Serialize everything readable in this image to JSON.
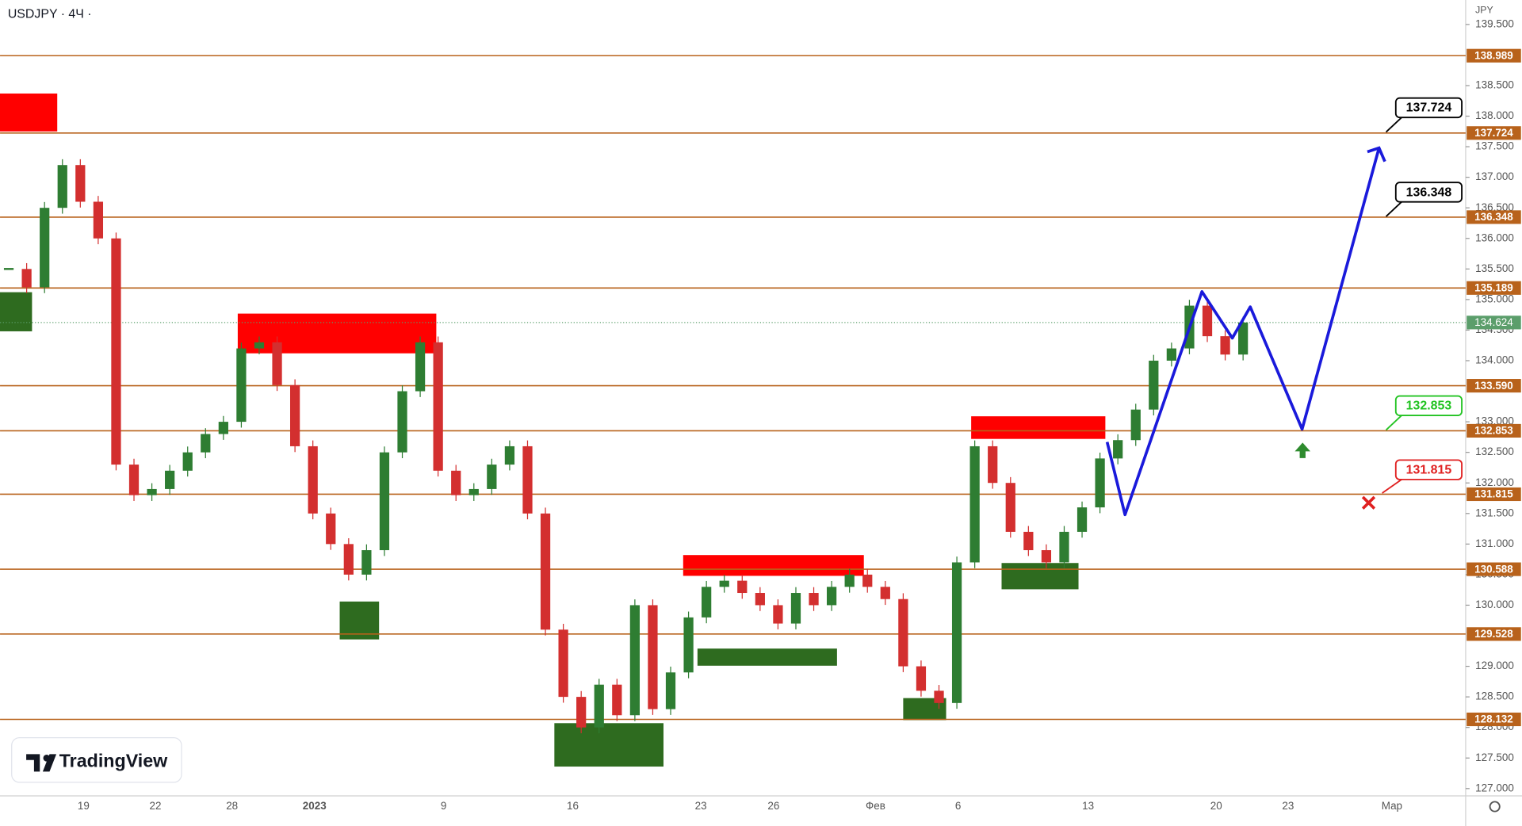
{
  "chart_data": {
    "type": "candlestick",
    "title": "USDJPY · 4Ч ·",
    "currency": "JPY",
    "brand": "TradingView",
    "categories": [
      "19",
      "22",
      "28",
      "2023",
      "9",
      "16",
      "23",
      "26",
      "Фев",
      "6",
      "13",
      "20",
      "23",
      "Мар"
    ],
    "closes": [
      135.5,
      135.2,
      136.5,
      137.2,
      136.6,
      136.0,
      132.3,
      131.8,
      131.9,
      132.2,
      132.5,
      132.8,
      133.0,
      134.2,
      134.3,
      133.6,
      132.6,
      131.5,
      131.0,
      130.5,
      130.9,
      132.5,
      133.5,
      134.3,
      132.2,
      131.8,
      131.9,
      132.3,
      132.6,
      131.5,
      129.6,
      128.5,
      128.0,
      128.7,
      128.2,
      130.0,
      128.3,
      128.9,
      129.8,
      130.3,
      130.4,
      130.2,
      130.0,
      129.7,
      130.2,
      130.0,
      130.3,
      130.5,
      130.3,
      130.1,
      129.0,
      128.6,
      128.4,
      130.7,
      132.6,
      132.0,
      131.2,
      130.9,
      130.7,
      131.2,
      131.6,
      132.4,
      132.7,
      133.2,
      134.0,
      134.2,
      134.9,
      134.4,
      134.1,
      134.624
    ],
    "up_color": "#2e7d32",
    "down_color": "#d32f2f",
    "ylim": [
      126.88,
      139.9
    ],
    "yticks": [
      {
        "value": 139.5,
        "label": "139.500"
      },
      {
        "value": 138.5,
        "label": "138.500"
      },
      {
        "value": 138,
        "label": "138.000"
      },
      {
        "value": 137.5,
        "label": "137.500"
      },
      {
        "value": 137,
        "label": "137.000"
      },
      {
        "value": 136.5,
        "label": "136.500"
      },
      {
        "value": 136,
        "label": "136.000"
      },
      {
        "value": 135.5,
        "label": "135.500"
      },
      {
        "value": 135,
        "label": "135.000"
      },
      {
        "value": 134.5,
        "label": "134.500"
      },
      {
        "value": 134,
        "label": "134.000"
      },
      {
        "value": 133,
        "label": "133.000"
      },
      {
        "value": 132.5,
        "label": "132.500"
      },
      {
        "value": 132,
        "label": "132.000"
      },
      {
        "value": 131.5,
        "label": "131.500"
      },
      {
        "value": 131,
        "label": "131.000"
      },
      {
        "value": 130.5,
        "label": "130.500"
      },
      {
        "value": 130,
        "label": "130.000"
      },
      {
        "value": 129,
        "label": "129.000"
      },
      {
        "value": 128.5,
        "label": "128.500"
      },
      {
        "value": 128,
        "label": "128.000"
      },
      {
        "value": 127.5,
        "label": "127.500"
      },
      {
        "value": 127,
        "label": "127.000"
      }
    ],
    "levels": [
      {
        "value": 138.989,
        "label": "138.989"
      },
      {
        "value": 137.724,
        "label": "137.724"
      },
      {
        "value": 136.348,
        "label": "136.348"
      },
      {
        "value": 135.189,
        "label": "135.189"
      },
      {
        "value": 133.59,
        "label": "133.590"
      },
      {
        "value": 132.853,
        "label": "132.853"
      },
      {
        "value": 131.815,
        "label": "131.815"
      },
      {
        "value": 130.588,
        "label": "130.588"
      },
      {
        "value": 129.528,
        "label": "129.528"
      },
      {
        "value": 128.132,
        "label": "128.132"
      }
    ],
    "level_color": "#b8621b",
    "current": {
      "value": 134.624,
      "label": "134.624"
    },
    "current_color": "#5b9e6b",
    "zones": [
      {
        "x": [
          -0.49,
          2.71
        ],
        "y": [
          137.75,
          138.37
        ],
        "color": "#ff0000"
      },
      {
        "x": [
          12.8,
          23.9
        ],
        "y": [
          134.12,
          134.77
        ],
        "color": "#ff0000"
      },
      {
        "x": [
          37.7,
          47.8
        ],
        "y": [
          130.48,
          130.82
        ],
        "color": "#ff0000"
      },
      {
        "x": [
          53.8,
          61.3
        ],
        "y": [
          132.72,
          133.09
        ],
        "color": "#ff0000"
      },
      {
        "x": [
          -0.49,
          1.3
        ],
        "y": [
          134.48,
          135.12
        ],
        "color": "#2e6b1f"
      },
      {
        "x": [
          18.5,
          20.7
        ],
        "y": [
          129.44,
          130.06
        ],
        "color": "#2e6b1f"
      },
      {
        "x": [
          30.5,
          36.6
        ],
        "y": [
          127.36,
          128.07
        ],
        "color": "#2e6b1f"
      },
      {
        "x": [
          38.5,
          46.3
        ],
        "y": [
          129.01,
          129.29
        ],
        "color": "#2e6b1f"
      },
      {
        "x": [
          50.0,
          52.4
        ],
        "y": [
          128.12,
          128.48
        ],
        "color": "#2e6b1f"
      },
      {
        "x": [
          55.5,
          59.8
        ],
        "y": [
          130.26,
          130.69
        ],
        "color": "#2e6b1f"
      }
    ],
    "projection": {
      "x": [
        61.4,
        62.4,
        66.7,
        68.4,
        69.4,
        72.3,
        76.6
      ],
      "values": [
        132.67,
        131.48,
        135.13,
        134.37,
        134.88,
        132.88,
        137.48
      ],
      "color": "#1a1adb"
    },
    "annotations": [
      {
        "text": "137.724",
        "color": "#000000"
      },
      {
        "text": "136.348",
        "color": "#000000"
      },
      {
        "text": "132.853",
        "color": "#22c322"
      },
      {
        "text": "131.815",
        "color": "#e02020"
      }
    ]
  }
}
